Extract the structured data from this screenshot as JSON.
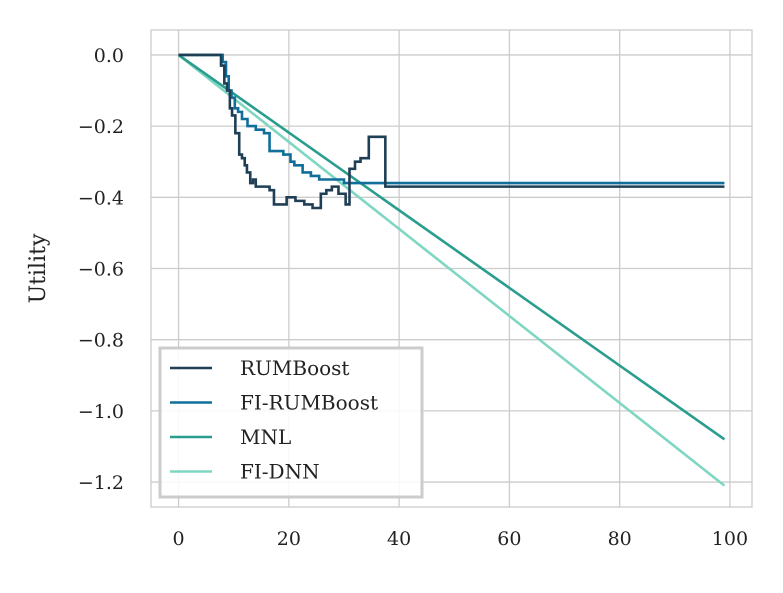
{
  "chart_data": {
    "type": "line",
    "title": "",
    "xlabel": "",
    "ylabel": "Utility",
    "xlim": [
      -5,
      104
    ],
    "ylim": [
      -1.27,
      0.07
    ],
    "xticks": [
      0,
      20,
      40,
      60,
      80,
      100
    ],
    "yticks": [
      0.0,
      -0.2,
      -0.4,
      -0.6,
      -0.8,
      -1.0,
      -1.2
    ],
    "xtick_labels": [
      "0",
      "20",
      "40",
      "60",
      "80",
      "100"
    ],
    "ytick_labels": [
      "0.0",
      "−0.2",
      "−0.4",
      "−0.6",
      "−0.8",
      "−1.0",
      "−1.2"
    ],
    "grid": true,
    "legend_position": "lower-left",
    "series": [
      {
        "name": "RUMBoost",
        "color": "#1f3f55",
        "step": true,
        "points": [
          [
            0,
            0
          ],
          [
            7.5,
            0
          ],
          [
            7.7,
            -0.03
          ],
          [
            8.3,
            -0.08
          ],
          [
            8.8,
            -0.1
          ],
          [
            9.3,
            -0.15
          ],
          [
            9.7,
            -0.17
          ],
          [
            10.3,
            -0.22
          ],
          [
            11.0,
            -0.28
          ],
          [
            11.5,
            -0.29
          ],
          [
            12.0,
            -0.31
          ],
          [
            12.4,
            -0.33
          ],
          [
            13.0,
            -0.36
          ],
          [
            13.5,
            -0.35
          ],
          [
            14.0,
            -0.37
          ],
          [
            15.5,
            -0.37
          ],
          [
            16.5,
            -0.38
          ],
          [
            17.3,
            -0.42
          ],
          [
            18.8,
            -0.42
          ],
          [
            19.6,
            -0.4
          ],
          [
            20.5,
            -0.4
          ],
          [
            21.2,
            -0.41
          ],
          [
            22.0,
            -0.41
          ],
          [
            22.8,
            -0.42
          ],
          [
            23.5,
            -0.42
          ],
          [
            24.3,
            -0.43
          ],
          [
            25.3,
            -0.43
          ],
          [
            25.8,
            -0.39
          ],
          [
            26.8,
            -0.38
          ],
          [
            27.8,
            -0.37
          ],
          [
            28.3,
            -0.37
          ],
          [
            29.0,
            -0.39
          ],
          [
            30.0,
            -0.39
          ],
          [
            30.3,
            -0.42
          ],
          [
            31.0,
            -0.32
          ],
          [
            32.0,
            -0.3
          ],
          [
            33.0,
            -0.29
          ],
          [
            34.0,
            -0.29
          ],
          [
            34.5,
            -0.23
          ],
          [
            37.5,
            -0.23
          ],
          [
            37.5,
            -0.37
          ],
          [
            99,
            -0.37
          ]
        ]
      },
      {
        "name": "FI-RUMBoost",
        "color": "#106f9a",
        "step": true,
        "points": [
          [
            0,
            0
          ],
          [
            7.8,
            0
          ],
          [
            8.0,
            -0.02
          ],
          [
            8.6,
            -0.06
          ],
          [
            9.1,
            -0.1
          ],
          [
            9.6,
            -0.12
          ],
          [
            10.2,
            -0.15
          ],
          [
            10.8,
            -0.16
          ],
          [
            11.5,
            -0.18
          ],
          [
            12.5,
            -0.2
          ],
          [
            14.0,
            -0.21
          ],
          [
            15.5,
            -0.22
          ],
          [
            16.5,
            -0.27
          ],
          [
            19.0,
            -0.28
          ],
          [
            20.3,
            -0.3
          ],
          [
            21.0,
            -0.31
          ],
          [
            22.5,
            -0.33
          ],
          [
            24.0,
            -0.34
          ],
          [
            25.5,
            -0.35
          ],
          [
            30.0,
            -0.36
          ],
          [
            99,
            -0.36
          ]
        ]
      },
      {
        "name": "MNL",
        "color": "#2a9d8f",
        "step": false,
        "points": [
          [
            0,
            0
          ],
          [
            99,
            -1.08
          ]
        ]
      },
      {
        "name": "FI-DNN",
        "color": "#7fd6c2",
        "step": false,
        "points": [
          [
            0,
            0
          ],
          [
            99,
            -1.21
          ]
        ]
      }
    ]
  }
}
